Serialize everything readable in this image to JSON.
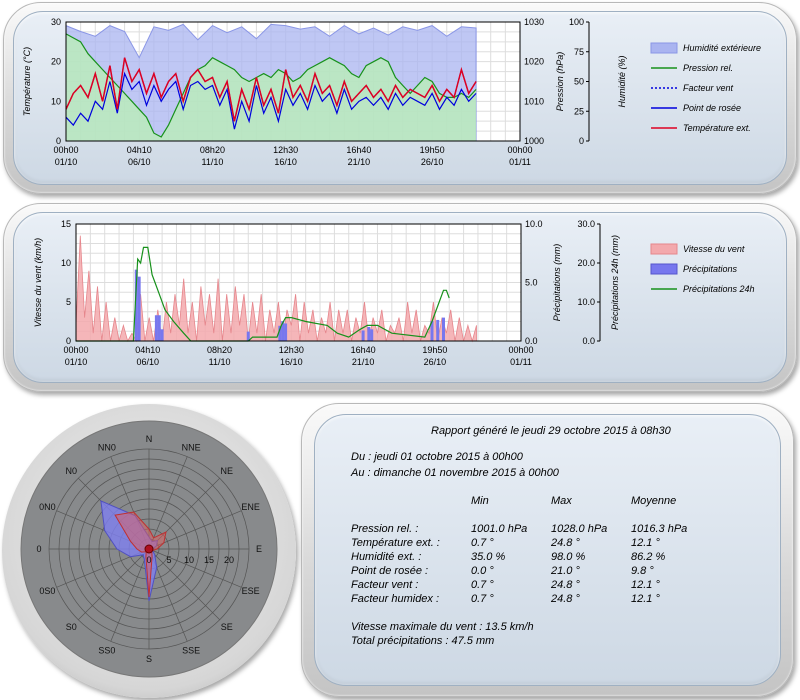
{
  "colors": {
    "humidity_fill": "#aab4f0",
    "humidity_stroke": "#8a96e6",
    "pressure": "#17911b",
    "pressure_fill": "#b9f0b4",
    "wind_factor": "#0000dd",
    "dew_point": "#0000dd",
    "temperature": "#dd0022",
    "wind_speed_fill": "#f3a9ad",
    "wind_speed_stroke": "#e6868c",
    "rain_fill": "#7777ee",
    "rain24h": "#17911b",
    "rose_fill": "#7f7ff0",
    "rose_red": "#e06060"
  },
  "chart_data": [
    {
      "type": "line",
      "x_tick_labels": [
        [
          "00h00",
          "01/10"
        ],
        [
          "04h10",
          "06/10"
        ],
        [
          "08h20",
          "11/10"
        ],
        [
          "12h30",
          "16/10"
        ],
        [
          "16h40",
          "21/10"
        ],
        [
          "19h50",
          "26/10"
        ],
        [
          "00h00",
          "01/11"
        ]
      ],
      "x_days": [
        0,
        5,
        10,
        15,
        20,
        25,
        31
      ],
      "y_left": {
        "label": "Température (°C)",
        "range": [
          0,
          30
        ],
        "ticks": [
          "0",
          "10",
          "20",
          "30"
        ]
      },
      "y_right1": {
        "label": "Pression (hPa)",
        "range": [
          1000,
          1030
        ],
        "ticks": [
          "1000",
          "1010",
          "1020",
          "1030"
        ]
      },
      "y_right2": {
        "label": "Humidité (%)",
        "range": [
          0,
          100
        ],
        "ticks": [
          "0",
          "25",
          "50",
          "75",
          "100"
        ]
      },
      "legend": [
        "Humidité extérieure",
        "Pression rel.",
        "Facteur vent",
        "Point de rosée",
        "Température ext."
      ],
      "series": {
        "humidity": {
          "x": [
            0,
            1,
            2,
            3,
            4,
            5,
            6,
            7,
            8,
            9,
            10,
            11,
            12,
            13,
            14,
            15,
            16,
            17,
            18,
            19,
            20,
            21,
            22,
            23,
            24,
            25,
            26,
            27,
            28
          ],
          "y": [
            97,
            92,
            88,
            97,
            92,
            70,
            96,
            93,
            98,
            85,
            97,
            91,
            96,
            86,
            98,
            97,
            94,
            96,
            88,
            97,
            90,
            95,
            89,
            96,
            93,
            97,
            88,
            96,
            95
          ]
        },
        "pressure": {
          "x": [
            0,
            0.5,
            1,
            1.5,
            2,
            2.5,
            3,
            3.5,
            4,
            4.5,
            5,
            5.5,
            6,
            6.5,
            7,
            7.5,
            8,
            8.5,
            9,
            9.5,
            10,
            10.5,
            11,
            11.5,
            12,
            12.5,
            13,
            13.5,
            14,
            14.5,
            15,
            15.5,
            16,
            16.5,
            17,
            17.5,
            18,
            18.5,
            19,
            19.5,
            20,
            20.5,
            21,
            21.5,
            22,
            22.5,
            23,
            23.5,
            24,
            24.5,
            25,
            25.5,
            26,
            26.5,
            27,
            27.5,
            28
          ],
          "y": [
            1027,
            1026,
            1025,
            1022,
            1020,
            1018,
            1016,
            1014,
            1012,
            1010,
            1008,
            1006,
            1002,
            1001,
            1004,
            1008,
            1012,
            1016,
            1018,
            1019,
            1021,
            1020,
            1019,
            1018,
            1016,
            1015,
            1016,
            1017,
            1016,
            1018,
            1017,
            1015,
            1016,
            1018,
            1019,
            1020,
            1021,
            1020,
            1019,
            1017,
            1016,
            1019,
            1020,
            1021,
            1020,
            1016,
            1014,
            1012,
            1014,
            1016,
            1015,
            1012,
            1011,
            1011,
            1012,
            1011,
            1013
          ]
        },
        "temperature": {
          "x": [
            0,
            0.5,
            1,
            1.5,
            2,
            2.5,
            3,
            3.5,
            4,
            4.5,
            5,
            5.5,
            6,
            6.5,
            7,
            7.5,
            8,
            8.5,
            9,
            9.5,
            10,
            10.5,
            11,
            11.5,
            12,
            12.5,
            13,
            13.5,
            14,
            14.5,
            15,
            15.5,
            16,
            16.5,
            17,
            17.5,
            18,
            18.5,
            19,
            19.5,
            20,
            20.5,
            21,
            21.5,
            22,
            22.5,
            23,
            23.5,
            24,
            24.5,
            25,
            25.5,
            26,
            26.5,
            27,
            27.5,
            28
          ],
          "y": [
            8,
            12,
            14,
            11,
            17,
            10,
            19,
            8,
            21,
            15,
            18,
            12,
            17,
            11,
            15,
            17,
            10,
            16,
            18,
            15,
            16,
            11,
            15,
            5,
            13,
            8,
            16,
            9,
            13,
            7,
            18,
            11,
            14,
            10,
            17,
            12,
            14,
            9,
            15,
            10,
            12,
            14,
            11,
            13,
            10,
            14,
            11,
            13,
            12,
            11,
            14,
            10,
            13,
            11,
            18,
            12,
            15
          ]
        },
        "dew_point": {
          "x": [
            0,
            0.5,
            1,
            1.5,
            2,
            2.5,
            3,
            3.5,
            4,
            4.5,
            5,
            5.5,
            6,
            6.5,
            7,
            7.5,
            8,
            8.5,
            9,
            9.5,
            10,
            10.5,
            11,
            11.5,
            12,
            12.5,
            13,
            13.5,
            14,
            14.5,
            15,
            15.5,
            16,
            16.5,
            17,
            17.5,
            18,
            18.5,
            19,
            19.5,
            20,
            20.5,
            21,
            21.5,
            22,
            22.5,
            23,
            23.5,
            24,
            24.5,
            25,
            25.5,
            26,
            26.5,
            27,
            27.5,
            28
          ],
          "y": [
            6,
            4,
            7,
            5,
            10,
            8,
            15,
            7,
            17,
            13,
            15,
            9,
            14,
            10,
            13,
            15,
            8,
            14,
            15,
            13,
            14,
            9,
            13,
            3,
            10,
            5,
            14,
            7,
            11,
            5,
            13,
            9,
            12,
            8,
            14,
            10,
            12,
            7,
            13,
            8,
            10,
            11,
            9,
            11,
            8,
            12,
            9,
            11,
            10,
            9,
            12,
            8,
            11,
            9,
            13,
            10,
            12
          ]
        }
      }
    },
    {
      "type": "area",
      "x_tick_labels": [
        [
          "00h00",
          "01/10"
        ],
        [
          "04h10",
          "06/10"
        ],
        [
          "08h20",
          "11/10"
        ],
        [
          "12h30",
          "16/10"
        ],
        [
          "16h40",
          "21/10"
        ],
        [
          "19h50",
          "26/10"
        ],
        [
          "00h00",
          "01/11"
        ]
      ],
      "x_days": [
        0,
        5,
        10,
        15,
        20,
        25,
        31
      ],
      "y_left": {
        "label": "Vitesse du vent (km/h)",
        "range": [
          0,
          15
        ],
        "ticks": [
          "0",
          "5",
          "10",
          "15"
        ]
      },
      "y_right1": {
        "label": "Précipitations (mm)",
        "range": [
          0,
          10
        ],
        "ticks": [
          "0.0",
          "5.0",
          "10.0"
        ]
      },
      "y_right2": {
        "label": "Précipitations 24h (mm)",
        "range": [
          0,
          30
        ],
        "ticks": [
          "0.0",
          "10.0",
          "20.0",
          "30.0"
        ]
      },
      "legend": [
        "Vitesse du vent",
        "Précipitations",
        "Précipitations 24h"
      ],
      "series": {
        "wind_speed": {
          "x": [
            0,
            0.3,
            0.6,
            0.9,
            1.2,
            1.5,
            1.8,
            2.1,
            2.4,
            2.7,
            3,
            3.3,
            3.6,
            3.9,
            4.2,
            4.5,
            4.8,
            5.1,
            5.4,
            5.7,
            6,
            6.3,
            6.6,
            6.9,
            7.2,
            7.5,
            7.8,
            8.1,
            8.4,
            8.7,
            9,
            9.3,
            9.6,
            9.9,
            10.2,
            10.5,
            10.8,
            11.1,
            11.4,
            11.7,
            12,
            12.3,
            12.6,
            12.9,
            13.2,
            13.5,
            13.8,
            14.1,
            14.4,
            14.7,
            15,
            15.3,
            15.6,
            15.9,
            16.2,
            16.5,
            16.8,
            17.1,
            17.4,
            17.7,
            18,
            18.3,
            18.6,
            18.9,
            19.2,
            19.5,
            19.8,
            20.1,
            20.4,
            20.7,
            21,
            21.3,
            21.6,
            21.9,
            22.2,
            22.5,
            22.8,
            23.1,
            23.4,
            23.7,
            24,
            24.3,
            24.6,
            24.9,
            25.2,
            25.5,
            25.8,
            26.1,
            26.4,
            26.7,
            27,
            27.3,
            27.6,
            27.9
          ],
          "y": [
            2,
            13.5,
            3,
            9,
            1,
            7,
            0,
            5,
            0,
            3,
            0,
            2,
            0,
            1,
            0,
            6,
            0,
            3,
            0,
            4,
            0,
            5,
            1,
            6,
            2,
            8,
            1,
            5,
            0,
            7,
            2,
            6,
            1,
            8,
            0,
            6,
            1,
            7,
            2,
            6,
            0,
            5,
            1,
            6,
            0,
            4,
            1,
            5,
            0,
            4,
            2,
            6,
            0,
            5,
            1,
            4,
            0,
            3,
            1,
            5,
            0,
            4,
            1,
            4,
            0,
            3,
            1,
            5,
            0,
            3,
            1,
            4,
            0,
            2,
            1,
            3,
            0,
            5,
            1,
            4,
            0,
            2,
            1,
            5,
            0,
            3,
            1,
            4,
            0,
            3,
            0,
            2,
            0,
            2
          ]
        },
        "rain": {
          "x": [
            4.2,
            4.4,
            5.6,
            5.8,
            6.0,
            12.0,
            14.2,
            14.4,
            14.6,
            20.0,
            20.4,
            20.6,
            24.8,
            25.2,
            25.6
          ],
          "y": [
            6.1,
            5.5,
            2.2,
            2.2,
            1.0,
            0.8,
            1.3,
            1.7,
            1.5,
            0.9,
            1.2,
            1.0,
            1.7,
            1.8,
            2.0
          ]
        },
        "rain24h": {
          "x": [
            0,
            4,
            4.3,
            4.5,
            4.7,
            5.0,
            5.3,
            5.5,
            5.8,
            6.2,
            6.8,
            7.5,
            8,
            12,
            12.3,
            14,
            14.3,
            14.6,
            15,
            16,
            17.5,
            18.2,
            19,
            19.8,
            20.3,
            21,
            22,
            24.3,
            24.8,
            25.3,
            25.6,
            25.8,
            26
          ],
          "y": [
            0,
            0,
            21,
            20,
            24,
            24,
            17,
            15,
            12,
            8,
            5,
            2,
            0,
            0,
            1,
            1,
            4,
            6,
            6,
            5,
            4,
            2,
            1,
            3,
            4,
            4,
            2,
            1,
            5,
            10,
            13,
            13,
            11
          ]
        }
      }
    },
    {
      "type": "radar",
      "directions": [
        "N",
        "NNE",
        "NE",
        "ENE",
        "E",
        "ESE",
        "SE",
        "SSE",
        "S",
        "SS0",
        "S0",
        "0S0",
        "0",
        "0N0",
        "N0",
        "NN0"
      ],
      "tick_labels": [
        "0",
        "5",
        "10",
        "15",
        "20"
      ],
      "range": [
        0,
        25
      ],
      "red_values": [
        5,
        3,
        6,
        4,
        2,
        1,
        1,
        2,
        12,
        2,
        1,
        2,
        3,
        5,
        12,
        10
      ],
      "blue_values": [
        3,
        2,
        3,
        2,
        1,
        1,
        2,
        5,
        13,
        3,
        2,
        5,
        8,
        12,
        17,
        9
      ]
    }
  ],
  "report": {
    "title": "Rapport généré le jeudi 29 octobre 2015 à 08h30",
    "from": "Du : jeudi 01 octobre 2015 à 00h00",
    "to": "Au : dimanche 01 novembre 2015 à 00h00",
    "col_min": "Min",
    "col_max": "Max",
    "col_avg": "Moyenne",
    "rows": [
      {
        "label": "Pression rel. :",
        "min": "1001.0 hPa",
        "max": "1028.0 hPa",
        "avg": "1016.3 hPa"
      },
      {
        "label": "Température ext. :",
        "min": "0.7 °",
        "max": "24.8 °",
        "avg": "12.1 °"
      },
      {
        "label": "Humidité ext. :",
        "min": "35.0 %",
        "max": "98.0 %",
        "avg": "86.2 %"
      },
      {
        "label": "Point de rosée :",
        "min": "0.0 °",
        "max": "21.0 °",
        "avg": "9.8 °"
      },
      {
        "label": "Facteur vent :",
        "min": "0.7 °",
        "max": "24.8 °",
        "avg": "12.1 °"
      },
      {
        "label": "Facteur humidex :",
        "min": "0.7 °",
        "max": "24.8 °",
        "avg": "12.1 °"
      }
    ],
    "max_wind": "Vitesse maximale du vent : 13.5 km/h",
    "total_rain": "Total précipitations : 47.5 mm"
  }
}
